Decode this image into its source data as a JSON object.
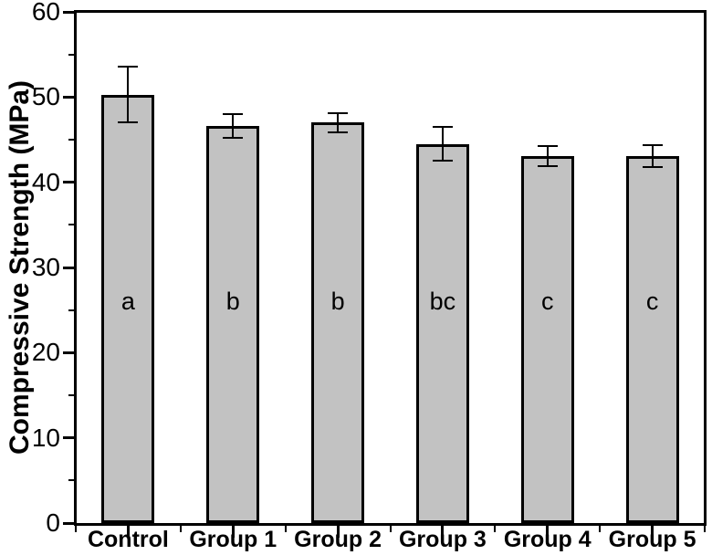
{
  "chart_data": {
    "type": "bar",
    "title": "",
    "xlabel": "",
    "ylabel": "Compressive Strength (MPa)",
    "ylim": [
      0,
      60
    ],
    "y_major_ticks": [
      0,
      10,
      20,
      30,
      40,
      50,
      60
    ],
    "y_minor_tick_step": 5,
    "grid": false,
    "legend": false,
    "categories": [
      "Control",
      "Group 1",
      "Group 2",
      "Group 3",
      "Group 4",
      "Group 5"
    ],
    "values": [
      50.3,
      46.6,
      47.0,
      44.5,
      43.1,
      43.1
    ],
    "errors": [
      3.3,
      1.4,
      1.1,
      2.0,
      1.2,
      1.3
    ],
    "significance_letters": [
      "a",
      "b",
      "b",
      "bc",
      "c",
      "c"
    ],
    "bar_fill_color": "#c2c2c2",
    "bar_border_color": "#000000",
    "error_bar_color": "#000000",
    "axis_color": "#000000",
    "background_color": "#ffffff"
  }
}
